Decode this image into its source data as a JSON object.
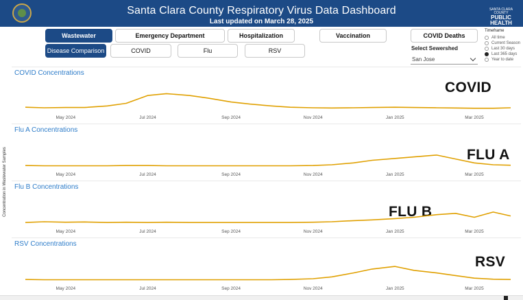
{
  "header": {
    "title": "Santa Clara County Respiratory Virus Data Dashboard",
    "subtitle": "Last updated on March 28, 2025",
    "logo_top": "SANTA CLARA COUNTY",
    "logo_main": "PUBLIC HEALTH"
  },
  "nav": {
    "wastewater": "Wastewater",
    "emergency": "Emergency Department",
    "hospitalization": "Hospitalization",
    "vaccination": "Vaccination",
    "covid_deaths": "COVID Deaths",
    "disease_comparison": "Disease Comparison",
    "covid": "COVID",
    "flu": "Flu",
    "rsv": "RSV"
  },
  "sewershed": {
    "label": "Select Sewershed",
    "value": "San Jose"
  },
  "timeframe": {
    "title": "Timeframe",
    "options": [
      "All time",
      "Current Season",
      "Last 30 days",
      "Last 365 days",
      "Year to date"
    ],
    "selected": "Last 365 days"
  },
  "y_axis_label": "Concentration in Wastewater Samples",
  "colors": {
    "header_bg": "#1c4a86",
    "line": "#e0a000",
    "title_blue": "#2d7cc9"
  },
  "chart_data": [
    {
      "type": "line",
      "title": "COVID Concentrations",
      "annotation": "COVID",
      "x_ticks": [
        "May 2024",
        "Jul 2024",
        "Sep 2024",
        "Nov 2024",
        "Jan 2025",
        "Mar 2025"
      ],
      "x": [
        "2024-04-01",
        "2024-04-15",
        "2024-05-01",
        "2024-05-15",
        "2024-06-01",
        "2024-06-15",
        "2024-07-01",
        "2024-07-15",
        "2024-08-01",
        "2024-08-15",
        "2024-09-01",
        "2024-09-15",
        "2024-10-01",
        "2024-10-15",
        "2024-11-01",
        "2024-11-15",
        "2024-12-01",
        "2024-12-15",
        "2025-01-01",
        "2025-01-15",
        "2025-02-01",
        "2025-02-15",
        "2025-03-01",
        "2025-03-15",
        "2025-03-28"
      ],
      "values": [
        0.1,
        0.08,
        0.09,
        0.09,
        0.15,
        0.25,
        0.55,
        0.62,
        0.55,
        0.45,
        0.3,
        0.22,
        0.15,
        0.1,
        0.08,
        0.07,
        0.08,
        0.09,
        0.1,
        0.09,
        0.08,
        0.07,
        0.06,
        0.06,
        0.08
      ]
    },
    {
      "type": "line",
      "title": "Flu A Concentrations",
      "annotation": "FLU A",
      "x_ticks": [
        "May 2024",
        "Jul 2024",
        "Sep 2024",
        "Nov 2024",
        "Jan 2025",
        "Mar 2025"
      ],
      "x": [
        "2024-04-01",
        "2024-04-15",
        "2024-05-01",
        "2024-05-15",
        "2024-06-01",
        "2024-06-15",
        "2024-07-01",
        "2024-07-15",
        "2024-08-01",
        "2024-08-15",
        "2024-09-01",
        "2024-09-15",
        "2024-10-01",
        "2024-10-15",
        "2024-11-01",
        "2024-11-15",
        "2024-12-01",
        "2024-12-15",
        "2025-01-01",
        "2025-01-15",
        "2025-02-01",
        "2025-02-15",
        "2025-03-01",
        "2025-03-15",
        "2025-03-28"
      ],
      "values": [
        0.05,
        0.04,
        0.04,
        0.04,
        0.04,
        0.05,
        0.05,
        0.04,
        0.04,
        0.04,
        0.04,
        0.04,
        0.04,
        0.04,
        0.05,
        0.08,
        0.15,
        0.25,
        0.32,
        0.38,
        0.45,
        0.3,
        0.15,
        0.08,
        0.06
      ]
    },
    {
      "type": "line",
      "title": "Flu B Concentrations",
      "annotation": "FLU B",
      "x_ticks": [
        "May 2024",
        "Jul 2024",
        "Sep 2024",
        "Nov 2024",
        "Jan 2025",
        "Mar 2025"
      ],
      "x": [
        "2024-04-01",
        "2024-04-15",
        "2024-05-01",
        "2024-05-15",
        "2024-06-01",
        "2024-06-15",
        "2024-07-01",
        "2024-07-15",
        "2024-08-01",
        "2024-08-15",
        "2024-09-01",
        "2024-09-15",
        "2024-10-01",
        "2024-10-15",
        "2024-11-01",
        "2024-11-15",
        "2024-12-01",
        "2024-12-15",
        "2025-01-01",
        "2025-01-15",
        "2025-02-01",
        "2025-02-15",
        "2025-03-01",
        "2025-03-15",
        "2025-03-28"
      ],
      "values": [
        0.05,
        0.08,
        0.06,
        0.07,
        0.05,
        0.06,
        0.05,
        0.06,
        0.05,
        0.05,
        0.05,
        0.05,
        0.05,
        0.05,
        0.06,
        0.08,
        0.12,
        0.15,
        0.2,
        0.25,
        0.35,
        0.4,
        0.25,
        0.45,
        0.3
      ]
    },
    {
      "type": "line",
      "title": "RSV Concentrations",
      "annotation": "RSV",
      "x_ticks": [
        "May 2024",
        "Jul 2024",
        "Sep 2024",
        "Nov 2024",
        "Jan 2025",
        "Mar 2025"
      ],
      "x": [
        "2024-04-01",
        "2024-04-15",
        "2024-05-01",
        "2024-05-15",
        "2024-06-01",
        "2024-06-15",
        "2024-07-01",
        "2024-07-15",
        "2024-08-01",
        "2024-08-15",
        "2024-09-01",
        "2024-09-15",
        "2024-10-01",
        "2024-10-15",
        "2024-11-01",
        "2024-11-15",
        "2024-12-01",
        "2024-12-15",
        "2025-01-01",
        "2025-01-15",
        "2025-02-01",
        "2025-02-15",
        "2025-03-01",
        "2025-03-15",
        "2025-03-28"
      ],
      "values": [
        0.05,
        0.04,
        0.04,
        0.04,
        0.04,
        0.04,
        0.04,
        0.04,
        0.04,
        0.04,
        0.04,
        0.04,
        0.04,
        0.05,
        0.08,
        0.15,
        0.3,
        0.45,
        0.55,
        0.4,
        0.3,
        0.2,
        0.1,
        0.06,
        0.05
      ]
    }
  ]
}
